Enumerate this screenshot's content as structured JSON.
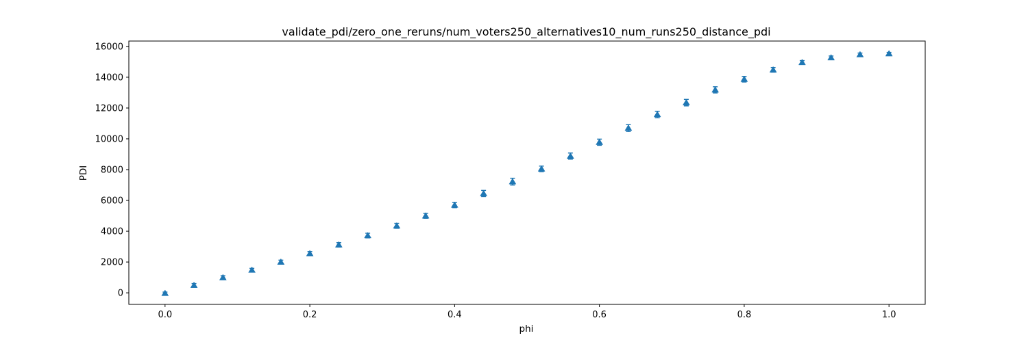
{
  "chart_data": {
    "type": "scatter",
    "title": "validate_pdi/zero_one_reruns/num_voters250_alternatives10_num_runs250_distance_pdi",
    "xlabel": "phi",
    "ylabel": "PDI",
    "xlim": [
      -0.05,
      1.05
    ],
    "ylim": [
      -750,
      16350
    ],
    "xticks": [
      0.0,
      0.2,
      0.4,
      0.6,
      0.8,
      1.0
    ],
    "xtick_labels": [
      "0.0",
      "0.2",
      "0.4",
      "0.6",
      "0.8",
      "1.0"
    ],
    "yticks": [
      0,
      2000,
      4000,
      6000,
      8000,
      10000,
      12000,
      14000,
      16000
    ],
    "ytick_labels": [
      "0",
      "2000",
      "4000",
      "6000",
      "8000",
      "10000",
      "12000",
      "14000",
      "16000"
    ],
    "grid": false,
    "marker": "triangle-up",
    "error_bars": true,
    "color": "#1f77b4",
    "series": [
      {
        "x": [
          0.0,
          0.04,
          0.08,
          0.12,
          0.16,
          0.2,
          0.24,
          0.28,
          0.32,
          0.36,
          0.4,
          0.44,
          0.48,
          0.52,
          0.56,
          0.6,
          0.64,
          0.68,
          0.72,
          0.76,
          0.8,
          0.84,
          0.88,
          0.92,
          0.96,
          1.0
        ],
        "y": [
          -30,
          490,
          990,
          1480,
          2000,
          2550,
          3120,
          3720,
          4350,
          5000,
          5700,
          6450,
          7220,
          8050,
          8880,
          9780,
          10700,
          11580,
          12350,
          13180,
          13870,
          14480,
          14960,
          15270,
          15470,
          15530
        ],
        "yerr": [
          80,
          110,
          120,
          110,
          120,
          130,
          140,
          150,
          160,
          160,
          170,
          200,
          220,
          180,
          200,
          200,
          220,
          210,
          210,
          200,
          180,
          150,
          120,
          110,
          100,
          80
        ]
      }
    ]
  }
}
